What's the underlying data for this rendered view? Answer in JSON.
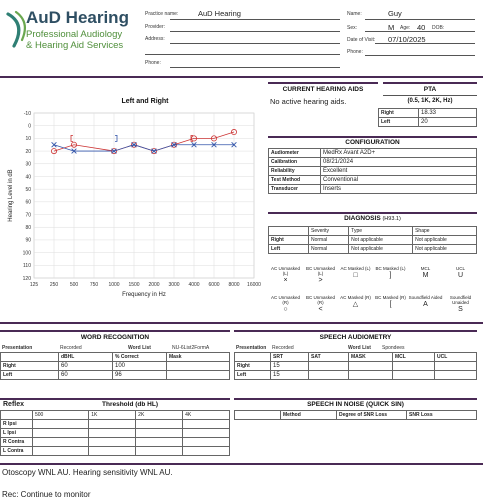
{
  "header": {
    "logo_line1": "AuD Hearing",
    "logo_line2": "Professional Audiology",
    "logo_line3": "& Hearing Aid Services",
    "practice_name_label": "Practice name:",
    "practice_name": "AuD Hearing",
    "provider_label": "Provider:",
    "address_label": "Address:",
    "phone_label": "Phone:",
    "patient_name_label": "Name:",
    "patient_name": "Guy",
    "sex_label": "Sex:",
    "sex": "M",
    "age_label": "Age:",
    "age": "40",
    "dob_label": "DOB:",
    "date_label": "Date of Visit:",
    "date": "07/10/2025",
    "patient_phone_label": "Phone:"
  },
  "chart_data": {
    "type": "line",
    "title": "Left and Right",
    "xlabel": "Frequency in Hz",
    "ylabel": "Hearing Level in dB",
    "x_ticks": [
      "125",
      "250",
      "500",
      "750",
      "1000",
      "1500",
      "2000",
      "3000",
      "4000",
      "6000",
      "8000",
      "16000"
    ],
    "y_ticks": [
      "-10",
      "0",
      "10",
      "20",
      "30",
      "40",
      "50",
      "60",
      "70",
      "80",
      "90",
      "100",
      "110",
      "120"
    ],
    "ylim": [
      -10,
      120
    ],
    "grid": true,
    "series": [
      {
        "ear": "right",
        "color": "#cc3333",
        "marker": "circle",
        "x": [
          250,
          500,
          1000,
          1500,
          2000,
          3000,
          4000,
          6000,
          8000
        ],
        "y": [
          20,
          15,
          20,
          15,
          20,
          15,
          10,
          10,
          5
        ]
      },
      {
        "ear": "left",
        "color": "#3355aa",
        "marker": "x",
        "x": [
          250,
          500,
          1000,
          1500,
          2000,
          3000,
          4000,
          6000,
          8000
        ],
        "y": [
          15,
          20,
          20,
          15,
          20,
          15,
          15,
          15,
          15
        ]
      }
    ],
    "masked_right_bracket": [
      {
        "x": 500,
        "y": 10
      },
      {
        "x": 4000,
        "y": 10
      }
    ],
    "masked_left_bracket": [
      {
        "x": 1000,
        "y": 10
      }
    ]
  },
  "current_aids": {
    "title": "CURRENT HEARING AIDS",
    "text": "No active hearing aids."
  },
  "pta": {
    "title": "PTA",
    "subtitle": "(0.5, 1K, 2K, Hz)",
    "right_label": "Right",
    "right": "18.33",
    "left_label": "Left",
    "left": "20"
  },
  "configuration": {
    "title": "CONFIGURATION",
    "rows": [
      {
        "label": "Audiometer",
        "value": "MedRx Avant A2D+"
      },
      {
        "label": "Calibration",
        "value": "08/21/2024"
      },
      {
        "label": "Reliability",
        "value": "Excellent"
      },
      {
        "label": "Test Method",
        "value": "Conventional"
      },
      {
        "label": "Transducer",
        "value": "Inserts"
      }
    ]
  },
  "diagnosis": {
    "title": "DIAGNOSIS",
    "code": "(H93.1)",
    "col_severity": "Severity",
    "col_type": "Type",
    "col_shape": "Shape",
    "rows": [
      {
        "ear": "Right",
        "severity": "Normal",
        "type": "Not applicable",
        "shape": "Not applicable"
      },
      {
        "ear": "Left",
        "severity": "Normal",
        "type": "Not applicable",
        "shape": "Not applicable"
      }
    ]
  },
  "legend": {
    "row1": [
      {
        "label": "AC Unmasked (L)",
        "glyph": "×"
      },
      {
        "label": "BC Unmasked (L)",
        "glyph": ">"
      },
      {
        "label": "AC Masked (L)",
        "glyph": "□"
      },
      {
        "label": "BC Masked (L)",
        "glyph": "]"
      },
      {
        "label": "MCL",
        "glyph": "M"
      },
      {
        "label": "UCL",
        "glyph": "U"
      }
    ],
    "row2": [
      {
        "label": "AC Unmasked (R)",
        "glyph": "○"
      },
      {
        "label": "BC Unmasked (R)",
        "glyph": "<"
      },
      {
        "label": "AC Masked (R)",
        "glyph": "△"
      },
      {
        "label": "BC Masked (R)",
        "glyph": "["
      },
      {
        "label": "Soundfield Aided",
        "glyph": "A"
      },
      {
        "label": "Soundfield Unaided",
        "glyph": "S"
      }
    ]
  },
  "word_recognition": {
    "title": "WORD RECOGNITION",
    "presentation_label": "Presentation",
    "presentation": "Recorded",
    "word_list_label": "Word List",
    "word_list": "NU-6List2FormA",
    "col_dbhl": "dBHL",
    "col_correct": "% Correct",
    "col_mask": "Mask",
    "rows": [
      {
        "ear": "Right",
        "dbhl": "60",
        "correct": "100",
        "mask": ""
      },
      {
        "ear": "Left",
        "dbhl": "60",
        "correct": "96",
        "mask": ""
      }
    ]
  },
  "speech_audiometry": {
    "title": "SPEECH AUDIOMETRY",
    "presentation_label": "Presentation",
    "presentation": "Recorded",
    "word_list_label": "Word List",
    "word_list": "Spondees",
    "col_srt": "SRT",
    "col_sat": "SAT",
    "col_mask": "MASK",
    "col_mcl": "MCL",
    "col_ucl": "UCL",
    "rows": [
      {
        "ear": "Right",
        "srt": "15"
      },
      {
        "ear": "Left",
        "srt": "15"
      }
    ]
  },
  "reflex": {
    "title": "Reflex",
    "threshold_title": "Threshold (db HL)",
    "cols": [
      "500",
      "1K",
      "2K",
      "4K"
    ],
    "rows": [
      "R Ipsi",
      "L Ipsi",
      "R Contra",
      "L Contra"
    ]
  },
  "speech_in_noise": {
    "title": "SPEECH IN NOISE (QUICK SIN)",
    "col_method": "Method",
    "col_degree": "Degree of SNR Loss",
    "col_snr": "SNR Loss"
  },
  "notes": {
    "line1": "Otoscopy WNL AU.  Hearing sensitivity WNL AU.",
    "line2": "Rec: Continue to monitor"
  }
}
